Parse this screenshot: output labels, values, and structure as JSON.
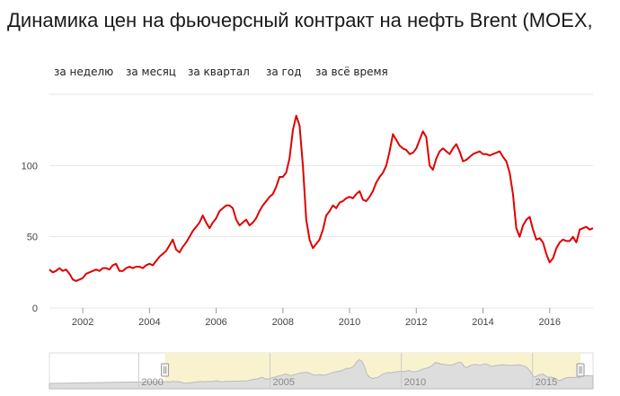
{
  "title": "Динамика цен на фьючерсный контракт на нефть Brent (MOEX,",
  "range_tabs": [
    "за неделю",
    "за месяц",
    "за квартал",
    "за год",
    "за всё время"
  ],
  "colors": {
    "line": "#e00000",
    "grid": "#e6e6e6",
    "navigator_fill": "#f8f2cf",
    "navigator_line": "#bbbbbb"
  },
  "chart_data": {
    "type": "line",
    "title": "Динамика цен на фьючерсный контракт на нефть Brent (MOEX,",
    "xlabel": "",
    "ylabel": "",
    "xlim": [
      2001.0,
      2017.3
    ],
    "ylim": [
      0,
      150
    ],
    "yticks": [
      0,
      50,
      100
    ],
    "xticks": [
      2002,
      2004,
      2006,
      2008,
      2010,
      2012,
      2014,
      2016
    ],
    "grid": true,
    "legend": "none",
    "series": [
      {
        "x": [
          2001.0,
          2001.1,
          2001.2,
          2001.3,
          2001.4,
          2001.5,
          2001.6,
          2001.7,
          2001.8,
          2001.9,
          2002.0,
          2002.1,
          2002.2,
          2002.3,
          2002.4,
          2002.5,
          2002.6,
          2002.7,
          2002.8,
          2002.9,
          2003.0,
          2003.1,
          2003.2,
          2003.3,
          2003.4,
          2003.5,
          2003.6,
          2003.7,
          2003.8,
          2003.9,
          2004.0,
          2004.1,
          2004.2,
          2004.3,
          2004.4,
          2004.5,
          2004.6,
          2004.7,
          2004.8,
          2004.9,
          2005.0,
          2005.1,
          2005.2,
          2005.3,
          2005.4,
          2005.5,
          2005.6,
          2005.7,
          2005.8,
          2005.9,
          2006.0,
          2006.1,
          2006.2,
          2006.3,
          2006.4,
          2006.5,
          2006.6,
          2006.7,
          2006.8,
          2006.9,
          2007.0,
          2007.1,
          2007.2,
          2007.3,
          2007.4,
          2007.5,
          2007.6,
          2007.7,
          2007.8,
          2007.9,
          2008.0,
          2008.1,
          2008.2,
          2008.3,
          2008.4,
          2008.5,
          2008.6,
          2008.7,
          2008.8,
          2008.9,
          2009.0,
          2009.1,
          2009.2,
          2009.3,
          2009.4,
          2009.5,
          2009.6,
          2009.7,
          2009.8,
          2009.9,
          2010.0,
          2010.1,
          2010.2,
          2010.3,
          2010.4,
          2010.5,
          2010.6,
          2010.7,
          2010.8,
          2010.9,
          2011.0,
          2011.1,
          2011.2,
          2011.3,
          2011.4,
          2011.5,
          2011.6,
          2011.7,
          2011.8,
          2011.9,
          2012.0,
          2012.1,
          2012.2,
          2012.3,
          2012.4,
          2012.5,
          2012.6,
          2012.7,
          2012.8,
          2012.9,
          2013.0,
          2013.1,
          2013.2,
          2013.3,
          2013.4,
          2013.5,
          2013.6,
          2013.7,
          2013.8,
          2013.9,
          2014.0,
          2014.1,
          2014.2,
          2014.3,
          2014.4,
          2014.5,
          2014.6,
          2014.7,
          2014.8,
          2014.9,
          2015.0,
          2015.1,
          2015.2,
          2015.3,
          2015.4,
          2015.5,
          2015.6,
          2015.7,
          2015.8,
          2015.9,
          2016.0,
          2016.1,
          2016.2,
          2016.3,
          2016.4,
          2016.5,
          2016.6,
          2016.7,
          2016.8,
          2016.9,
          2017.0,
          2017.1,
          2017.2,
          2017.3
        ],
        "values": [
          27,
          25,
          26,
          28,
          26,
          27,
          24,
          20,
          19,
          20,
          21,
          24,
          25,
          26,
          27,
          26,
          28,
          28,
          27,
          30,
          31,
          26,
          26,
          28,
          29,
          28,
          29,
          29,
          28,
          30,
          31,
          30,
          33,
          36,
          38,
          40,
          44,
          48,
          41,
          39,
          43,
          46,
          50,
          54,
          57,
          60,
          65,
          60,
          56,
          60,
          63,
          68,
          70,
          72,
          72,
          70,
          62,
          58,
          60,
          62,
          58,
          60,
          63,
          68,
          72,
          75,
          78,
          80,
          85,
          92,
          92,
          95,
          105,
          125,
          135,
          128,
          100,
          62,
          48,
          42,
          45,
          48,
          55,
          65,
          68,
          72,
          70,
          74,
          75,
          77,
          78,
          77,
          80,
          82,
          76,
          75,
          78,
          82,
          88,
          92,
          95,
          100,
          110,
          122,
          118,
          114,
          112,
          111,
          108,
          109,
          112,
          118,
          124,
          120,
          100,
          97,
          105,
          110,
          112,
          110,
          108,
          112,
          115,
          110,
          103,
          104,
          106,
          108,
          109,
          110,
          108,
          108,
          107,
          108,
          109,
          110,
          106,
          103,
          95,
          80,
          56,
          50,
          58,
          62,
          64,
          55,
          48,
          49,
          46,
          38,
          32,
          35,
          42,
          46,
          48,
          47,
          47,
          50,
          46,
          55,
          56,
          57,
          55,
          56
        ]
      }
    ],
    "navigator": {
      "labels": [
        "2000",
        "2005",
        "2010",
        "2015"
      ]
    }
  }
}
